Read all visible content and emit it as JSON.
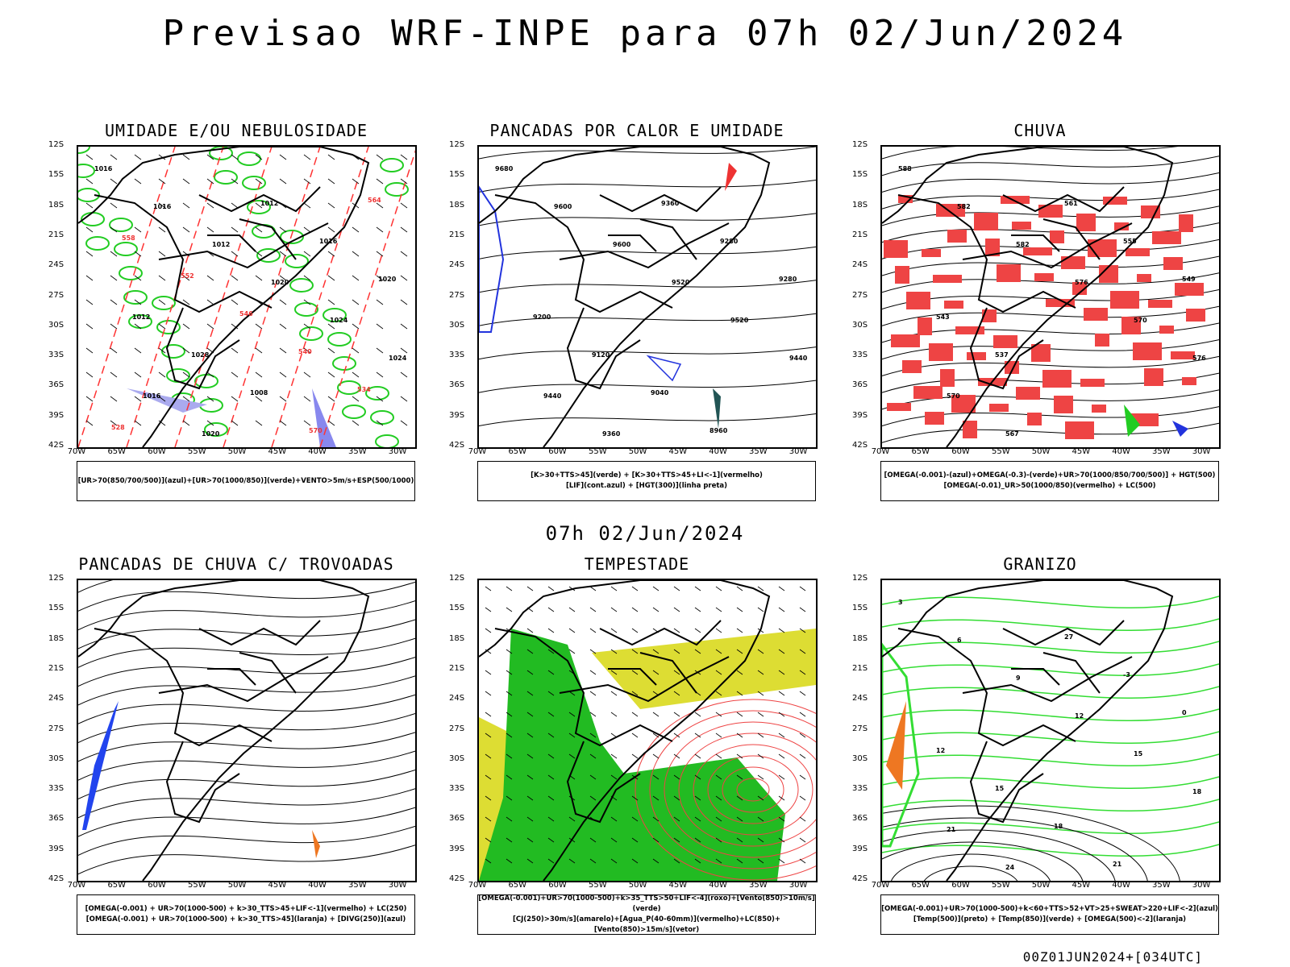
{
  "title": "Previsao WRF-INPE  para 07h 02/Jun/2024",
  "mid_label": "07h 02/Jun/2024",
  "footer": "00Z01JUN2024+[034UTC]",
  "lat_labels": [
    "12S",
    "15S",
    "18S",
    "21S",
    "24S",
    "27S",
    "30S",
    "33S",
    "36S",
    "39S",
    "42S"
  ],
  "lon_labels": [
    "70W",
    "65W",
    "60W",
    "55W",
    "50W",
    "45W",
    "40W",
    "35W",
    "30W"
  ],
  "panels": [
    {
      "title": "UMIDADE E/OU NEBULOSIDADE",
      "legend": [
        "[UR>70(850/700/500)](azul)+[UR>70(1000/850)](verde)+VENTO>5m/s+ESP(500/1000)"
      ],
      "contour_labels": [
        "1016",
        "1016",
        "1012",
        "1020",
        "1024",
        "1024",
        "1016",
        "1020",
        "1012",
        "1016",
        "1020",
        "1012",
        "1028",
        "1008",
        "570",
        "564",
        "558",
        "552",
        "546",
        "540",
        "534",
        "528"
      ]
    },
    {
      "title": "PANCADAS POR CALOR E UMIDADE",
      "legend": [
        "[K>30+TTS>45](verde) + [K>30+TTS>45+LI<-1](vermelho)",
        "[LIF](cont.azul) + [HGT(300)](linha preta)"
      ],
      "contour_labels": [
        "9680",
        "9600",
        "9600",
        "9520",
        "9520",
        "9440",
        "9440",
        "9360",
        "9360",
        "9280",
        "9280",
        "9200",
        "9120",
        "9040",
        "8960"
      ]
    },
    {
      "title": "CHUVA",
      "legend": [
        "[OMEGA(-0.001)-(azul)+OMEGA(-0.3)-(verde)+UR>70(1000/850/700/500)] + HGT(500)",
        "[OMEGA(-0.01)_UR>50(1000/850)(vermelho) + LC(500)"
      ],
      "contour_labels": [
        "588",
        "582",
        "582",
        "576",
        "570",
        "576",
        "570",
        "567",
        "561",
        "555",
        "549",
        "543",
        "537"
      ]
    },
    {
      "title": "PANCADAS DE CHUVA C/ TROVOADAS",
      "legend": [
        "[OMEGA(-0.001) + UR>70(1000-500) + k>30_TTS>45+LIF<-1](vermelho) + LC(250)",
        "[OMEGA(-0.001) + UR>70(1000-500) + k>30_TTS>45](laranja) + [DIVG(250)](azul)"
      ],
      "contour_labels": []
    },
    {
      "title": "TEMPESTADE",
      "legend": [
        "[OMEGA(-0.001)+UR>70(1000-500)+k>35_TTS>50+LIF<-4](roxo)+[Vento(850)>10m/s](verde)",
        "[CJ(250)>30m/s](amarelo)+[Agua_P(40-60mm)](vermelho)+LC(850)+[Vento(850)>15m/s](vetor)"
      ],
      "contour_labels": []
    },
    {
      "title": "GRANIZO",
      "legend": [
        "[OMEGA(-0.001)+UR>70(1000-500)+k<60+TTS>52+VT>25+SWEAT>220+LIF<-2](azul)",
        "[Temp(500)](preto) + [Temp(850)](verde) + [OMEGA(500)<-2](laranja)"
      ],
      "contour_labels": [
        "3",
        "6",
        "9",
        "12",
        "15",
        "18",
        "21",
        "24",
        "27",
        "-3",
        "0",
        "12",
        "15",
        "18",
        "21"
      ]
    }
  ]
}
